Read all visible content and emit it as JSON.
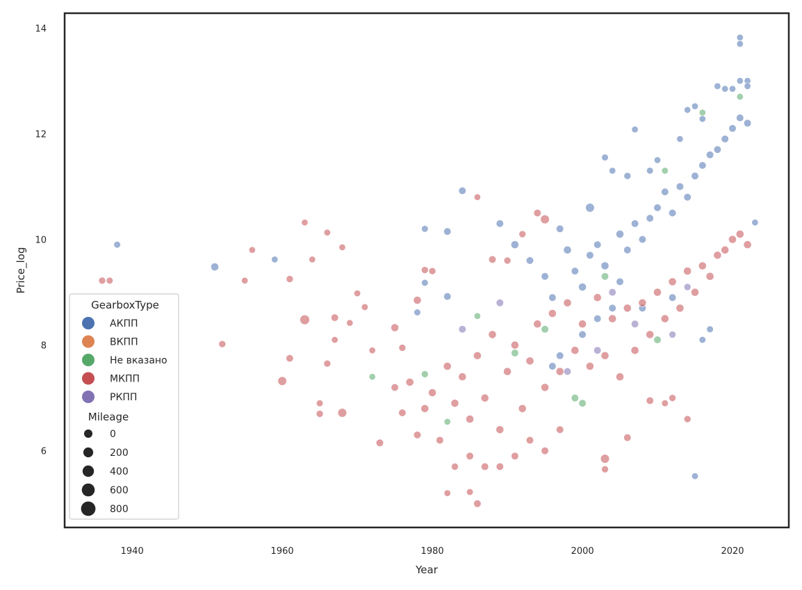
{
  "chart_data": {
    "type": "scatter",
    "xlabel": "Year",
    "ylabel": "Price_log",
    "xlim": [
      1931,
      2027.5
    ],
    "ylim": [
      4.55,
      14.28
    ],
    "xticks": [
      1940,
      1960,
      1980,
      2000,
      2020
    ],
    "yticks": [
      6,
      8,
      10,
      12,
      14
    ],
    "grid": false,
    "legend_position": "lower-left",
    "hue_title": "GearboxType",
    "size_title": "Mileage",
    "hue_legend": [
      {
        "name": "АКПП",
        "color": "#4c72b0"
      },
      {
        "name": "ВКПП",
        "color": "#dd8452"
      },
      {
        "name": "Не вказано",
        "color": "#55a868"
      },
      {
        "name": "МКПП",
        "color": "#c44e52"
      },
      {
        "name": "РКПП",
        "color": "#8172b3"
      }
    ],
    "size_legend": [
      {
        "label": "0",
        "value": 0
      },
      {
        "label": "200",
        "value": 200
      },
      {
        "label": "400",
        "value": 400
      },
      {
        "label": "600",
        "value": 600
      },
      {
        "label": "800",
        "value": 800
      }
    ],
    "series": [
      {
        "name": "АКПП",
        "color": "#4c72b0",
        "points": [
          [
            1938,
            9.9,
            80
          ],
          [
            1951,
            9.48,
            200
          ],
          [
            1959,
            9.62,
            60
          ],
          [
            1979,
            10.2,
            80
          ],
          [
            1982,
            10.15,
            150
          ],
          [
            1984,
            10.92,
            150
          ],
          [
            1989,
            10.3,
            150
          ],
          [
            1991,
            9.9,
            200
          ],
          [
            1993,
            9.6,
            150
          ],
          [
            1997,
            10.2,
            150
          ],
          [
            2001,
            10.6,
            300
          ],
          [
            2003,
            11.55,
            80
          ],
          [
            2004,
            11.3,
            60
          ],
          [
            2005,
            10.1,
            200
          ],
          [
            2006,
            11.2,
            100
          ],
          [
            2007,
            12.08,
            60
          ],
          [
            2009,
            11.3,
            80
          ],
          [
            2010,
            11.5,
            60
          ],
          [
            2013,
            11.9,
            60
          ],
          [
            2014,
            12.45,
            60
          ],
          [
            2015,
            12.52,
            60
          ],
          [
            2016,
            12.28,
            60
          ],
          [
            2018,
            12.9,
            60
          ],
          [
            2019,
            12.85,
            60
          ],
          [
            2020,
            12.85,
            60
          ],
          [
            2021,
            13.82,
            60
          ],
          [
            2021,
            13.7,
            60
          ],
          [
            2021,
            13.0,
            60
          ],
          [
            2022,
            13.0,
            60
          ],
          [
            2022,
            12.9,
            60
          ],
          [
            2023,
            10.32,
            60
          ],
          [
            2015,
            5.52,
            60
          ],
          [
            1982,
            8.92,
            150
          ],
          [
            1979,
            9.18,
            80
          ],
          [
            1978,
            8.62,
            80
          ],
          [
            1995,
            9.3,
            150
          ],
          [
            1996,
            8.9,
            150
          ],
          [
            1998,
            9.8,
            200
          ],
          [
            1999,
            9.4,
            150
          ],
          [
            2000,
            9.1,
            200
          ],
          [
            2001,
            9.7,
            150
          ],
          [
            2002,
            9.9,
            150
          ],
          [
            2003,
            9.5,
            200
          ],
          [
            2004,
            8.7,
            150
          ],
          [
            2005,
            9.2,
            150
          ],
          [
            2006,
            9.8,
            150
          ],
          [
            2007,
            10.3,
            150
          ],
          [
            2008,
            10.0,
            150
          ],
          [
            2009,
            10.4,
            150
          ],
          [
            2010,
            10.6,
            150
          ],
          [
            2011,
            10.9,
            150
          ],
          [
            2012,
            10.5,
            150
          ],
          [
            2013,
            11.0,
            150
          ],
          [
            2014,
            10.8,
            150
          ],
          [
            2015,
            11.2,
            150
          ],
          [
            2016,
            11.4,
            150
          ],
          [
            2017,
            11.6,
            150
          ],
          [
            2018,
            11.7,
            150
          ],
          [
            2019,
            11.9,
            150
          ],
          [
            2020,
            12.1,
            150
          ],
          [
            2021,
            12.3,
            150
          ],
          [
            2022,
            12.2,
            150
          ],
          [
            1997,
            7.8,
            150
          ],
          [
            1996,
            7.6,
            150
          ],
          [
            2000,
            8.2,
            150
          ],
          [
            2002,
            8.5,
            150
          ],
          [
            2008,
            8.7,
            150
          ],
          [
            2012,
            8.9,
            150
          ],
          [
            2016,
            8.1,
            80
          ],
          [
            2017,
            8.3,
            80
          ]
        ]
      },
      {
        "name": "Не вказано",
        "color": "#55a868",
        "points": [
          [
            1972,
            7.4,
            60
          ],
          [
            1979,
            7.45,
            100
          ],
          [
            1986,
            8.55,
            60
          ],
          [
            1991,
            7.85,
            150
          ],
          [
            1999,
            7.0,
            150
          ],
          [
            2000,
            6.9,
            150
          ],
          [
            2003,
            9.3,
            150
          ],
          [
            2016,
            12.4,
            60
          ],
          [
            2021,
            12.7,
            60
          ],
          [
            2011,
            11.3,
            60
          ],
          [
            1982,
            6.55,
            60
          ],
          [
            1995,
            8.3,
            150
          ],
          [
            2010,
            8.1,
            150
          ]
        ]
      },
      {
        "name": "МКПП",
        "color": "#c44e52",
        "points": [
          [
            1936,
            9.22,
            100
          ],
          [
            1937,
            9.22,
            80
          ],
          [
            1952,
            8.02,
            100
          ],
          [
            1955,
            9.22,
            60
          ],
          [
            1956,
            9.8,
            60
          ],
          [
            1960,
            7.32,
            300
          ],
          [
            1961,
            9.25,
            100
          ],
          [
            1961,
            7.75,
            150
          ],
          [
            1963,
            8.48,
            400
          ],
          [
            1963,
            10.32,
            60
          ],
          [
            1964,
            9.62,
            60
          ],
          [
            1965,
            6.9,
            80
          ],
          [
            1965,
            6.7,
            100
          ],
          [
            1966,
            10.13,
            60
          ],
          [
            1966,
            7.65,
            100
          ],
          [
            1967,
            8.52,
            150
          ],
          [
            1967,
            8.1,
            60
          ],
          [
            1968,
            9.85,
            60
          ],
          [
            1968,
            6.72,
            300
          ],
          [
            1969,
            8.42,
            60
          ],
          [
            1970,
            8.98,
            60
          ],
          [
            1971,
            8.72,
            80
          ],
          [
            1972,
            7.9,
            60
          ],
          [
            1973,
            6.15,
            150
          ],
          [
            1975,
            8.33,
            200
          ],
          [
            1976,
            6.72,
            150
          ],
          [
            1976,
            7.95,
            100
          ],
          [
            1978,
            8.85,
            200
          ],
          [
            1979,
            9.42,
            100
          ],
          [
            1980,
            9.4,
            100
          ],
          [
            1982,
            5.2,
            60
          ],
          [
            1985,
            5.22,
            80
          ],
          [
            1986,
            10.8,
            60
          ],
          [
            1986,
            5.0,
            150
          ],
          [
            1988,
            9.62,
            150
          ],
          [
            1990,
            9.6,
            100
          ],
          [
            1992,
            10.1,
            100
          ],
          [
            1994,
            10.5,
            150
          ],
          [
            1995,
            10.38,
            300
          ],
          [
            1997,
            6.4,
            150
          ],
          [
            2003,
            5.85,
            300
          ],
          [
            2003,
            5.65,
            100
          ],
          [
            2006,
            6.25,
            150
          ],
          [
            2009,
            6.95,
            150
          ],
          [
            2011,
            6.9,
            80
          ],
          [
            2014,
            6.6,
            100
          ],
          [
            2012,
            7.0,
            100
          ],
          [
            1975,
            7.2,
            150
          ],
          [
            1977,
            7.3,
            200
          ],
          [
            1978,
            6.3,
            150
          ],
          [
            1979,
            6.8,
            200
          ],
          [
            1980,
            7.1,
            200
          ],
          [
            1981,
            6.2,
            150
          ],
          [
            1982,
            7.6,
            200
          ],
          [
            1983,
            6.9,
            200
          ],
          [
            1984,
            7.4,
            200
          ],
          [
            1985,
            6.6,
            200
          ],
          [
            1986,
            7.8,
            200
          ],
          [
            1987,
            7.0,
            200
          ],
          [
            1988,
            8.2,
            200
          ],
          [
            1989,
            6.4,
            200
          ],
          [
            1990,
            7.5,
            200
          ],
          [
            1991,
            8.0,
            200
          ],
          [
            1992,
            6.8,
            200
          ],
          [
            1993,
            7.7,
            200
          ],
          [
            1994,
            8.4,
            200
          ],
          [
            1995,
            7.2,
            200
          ],
          [
            1996,
            8.6,
            200
          ],
          [
            1997,
            7.5,
            200
          ],
          [
            1998,
            8.8,
            200
          ],
          [
            1999,
            7.9,
            200
          ],
          [
            2000,
            8.4,
            200
          ],
          [
            2001,
            7.6,
            200
          ],
          [
            2002,
            8.9,
            200
          ],
          [
            2003,
            7.8,
            200
          ],
          [
            2004,
            8.5,
            200
          ],
          [
            2005,
            7.4,
            200
          ],
          [
            2006,
            8.7,
            200
          ],
          [
            2007,
            7.9,
            200
          ],
          [
            2008,
            8.8,
            200
          ],
          [
            2009,
            8.2,
            200
          ],
          [
            2010,
            9.0,
            200
          ],
          [
            2011,
            8.5,
            200
          ],
          [
            2012,
            9.2,
            200
          ],
          [
            2013,
            8.7,
            200
          ],
          [
            2014,
            9.4,
            200
          ],
          [
            2015,
            9.0,
            200
          ],
          [
            2016,
            9.5,
            200
          ],
          [
            2017,
            9.3,
            200
          ],
          [
            2018,
            9.7,
            200
          ],
          [
            2019,
            9.8,
            200
          ],
          [
            2020,
            10.0,
            200
          ],
          [
            2021,
            10.1,
            200
          ],
          [
            2022,
            9.9,
            200
          ],
          [
            1983,
            5.7,
            100
          ],
          [
            1985,
            5.9,
            150
          ],
          [
            1987,
            5.7,
            150
          ],
          [
            1989,
            5.7,
            150
          ],
          [
            1991,
            5.9,
            150
          ],
          [
            1993,
            6.2,
            150
          ],
          [
            1995,
            6.0,
            150
          ]
        ]
      },
      {
        "name": "РКПП",
        "color": "#8172b3",
        "points": [
          [
            1984,
            8.3,
            150
          ],
          [
            1989,
            8.8,
            150
          ],
          [
            1998,
            7.5,
            150
          ],
          [
            2002,
            7.9,
            150
          ],
          [
            2004,
            9.0,
            150
          ],
          [
            2007,
            8.4,
            150
          ],
          [
            2012,
            8.2,
            100
          ],
          [
            2014,
            9.1,
            100
          ]
        ]
      }
    ]
  }
}
